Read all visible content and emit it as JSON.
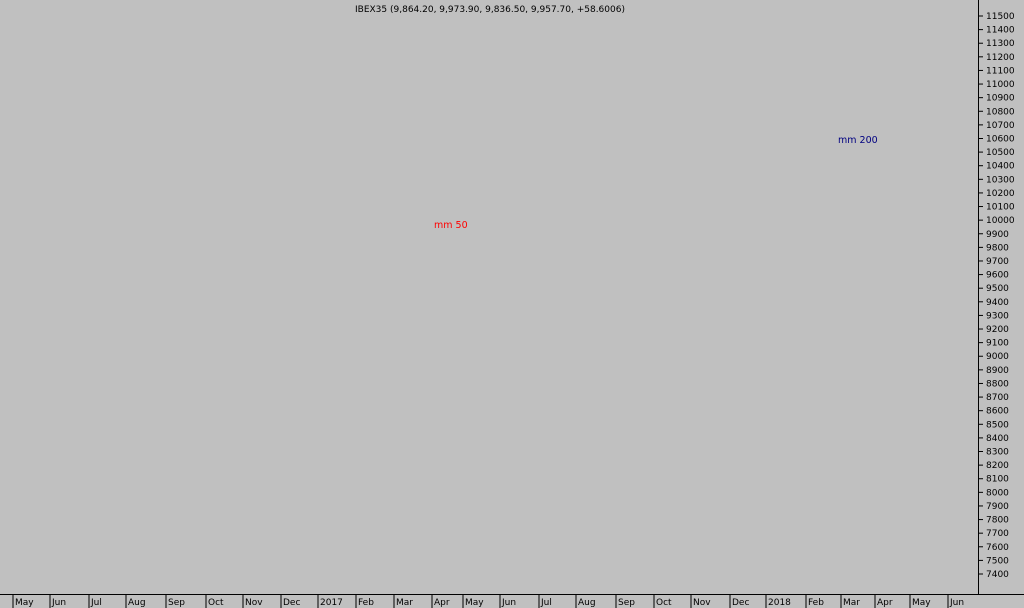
{
  "chart_data": {
    "type": "candlestick",
    "title": "IBEX35 (9,864.20, 9,973.90, 9,836.50, 9,957.70, +58.6006)",
    "ylim": [
      7300,
      11600
    ],
    "grid": false,
    "y_ticks": [
      7400,
      7500,
      7600,
      7700,
      7800,
      7900,
      8000,
      8100,
      8200,
      8300,
      8400,
      8500,
      8600,
      8700,
      8800,
      8900,
      9000,
      9100,
      9200,
      9300,
      9400,
      9500,
      9600,
      9700,
      9800,
      9900,
      10000,
      10100,
      10200,
      10300,
      10400,
      10500,
      10600,
      10700,
      10800,
      10900,
      11000,
      11100,
      11200,
      11300,
      11400,
      11500
    ],
    "x_ticks": [
      "May",
      "Jun",
      "Jul",
      "Aug",
      "Sep",
      "Oct",
      "Nov",
      "Dec",
      "2017",
      "Feb",
      "Mar",
      "Apr",
      "May",
      "Jun",
      "Jul",
      "Aug",
      "Sep",
      "Oct",
      "Nov",
      "Dec",
      "2018",
      "Feb",
      "Mar",
      "Apr",
      "May",
      "Jun"
    ],
    "annotations": [
      "mm 50",
      "mm 200"
    ],
    "colors": {
      "background": "#c0c0c0",
      "up": "#000000",
      "down": "#ff0000",
      "mm50": "#ff0000",
      "mm200": "#000080",
      "support": "#ff0000",
      "long_trend": "#400000",
      "marker_green": "#006000"
    },
    "moving_averages": [
      {
        "name": "mm 50",
        "color": "#ff0000",
        "style": "dashed"
      },
      {
        "name": "mm 200",
        "color": "#000080",
        "style": "dashed"
      }
    ]
  }
}
